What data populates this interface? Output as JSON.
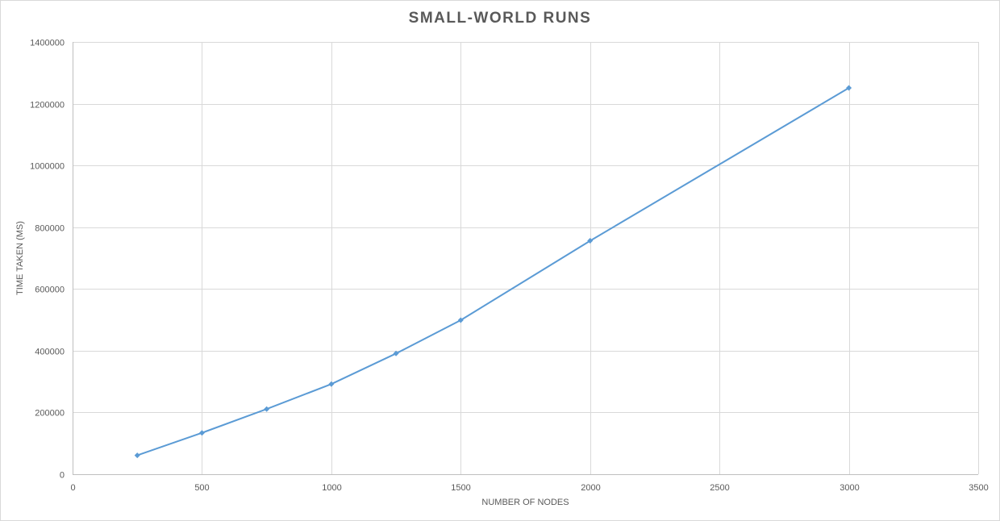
{
  "chart_data": {
    "type": "scatter",
    "title": "SMALL-WORLD RUNS",
    "xlabel": "NUMBER OF NODES",
    "ylabel": "TIME TAKEN (MS)",
    "xlim": [
      0,
      3500
    ],
    "ylim": [
      0,
      1400000
    ],
    "x_ticks": [
      0,
      500,
      1000,
      1500,
      2000,
      2500,
      3000,
      3500
    ],
    "y_ticks": [
      0,
      200000,
      400000,
      600000,
      800000,
      1000000,
      1200000,
      1400000
    ],
    "grid": true,
    "series": [
      {
        "color": "#5b9bd5",
        "marker": "diamond",
        "line": "straight",
        "points": [
          {
            "x": 250,
            "y": 61000
          },
          {
            "x": 500,
            "y": 134000
          },
          {
            "x": 750,
            "y": 211000
          },
          {
            "x": 1000,
            "y": 292000
          },
          {
            "x": 1250,
            "y": 391000
          },
          {
            "x": 1500,
            "y": 499000
          },
          {
            "x": 2000,
            "y": 756000
          },
          {
            "x": 3000,
            "y": 1251000
          }
        ]
      }
    ]
  }
}
